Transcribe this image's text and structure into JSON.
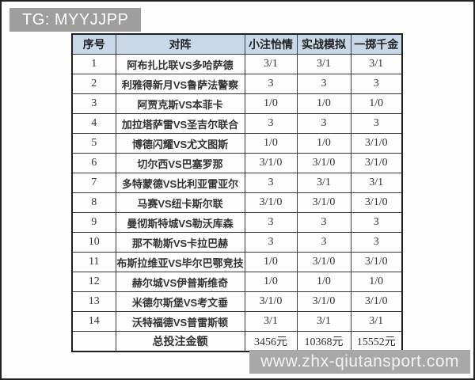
{
  "banner": {
    "text": "TG: MYYJJPP"
  },
  "watermark": {
    "text": "www.zhx-qiutansport.com"
  },
  "colors": {
    "banner_bg": "#9e9e9e",
    "header_bg": "#c8d8e8",
    "border": "#3a3a3a",
    "text": "#333333",
    "watermark_bg": "#a8a8a8",
    "watermark_text": "#f2f2f2"
  },
  "table": {
    "headers": {
      "no": "序号",
      "matchup": "对阵",
      "small_bet": "小注怡情",
      "simulation": "实战模拟",
      "big_bet": "一掷千金"
    },
    "rows": [
      {
        "no": "1",
        "matchup": "阿布扎比联VS多哈萨德",
        "small_bet": "3/1",
        "simulation": "3/1",
        "big_bet": "3/1"
      },
      {
        "no": "2",
        "matchup": "利雅得新月VS鲁萨法警察",
        "small_bet": "3",
        "simulation": "3",
        "big_bet": "3"
      },
      {
        "no": "3",
        "matchup": "阿贾克斯VS本菲卡",
        "small_bet": "1/0",
        "simulation": "1/0",
        "big_bet": "1/0"
      },
      {
        "no": "4",
        "matchup": "加拉塔萨雷VS圣吉尔联合",
        "small_bet": "3",
        "simulation": "3",
        "big_bet": "3"
      },
      {
        "no": "5",
        "matchup": "博德闪耀VS尤文图斯",
        "small_bet": "1/0",
        "simulation": "1/0",
        "big_bet": "3/1/0"
      },
      {
        "no": "6",
        "matchup": "切尔西VS巴塞罗那",
        "small_bet": "3/1/0",
        "simulation": "3/1/0",
        "big_bet": "3/1/0"
      },
      {
        "no": "7",
        "matchup": "多特蒙德VS比利亚雷亚尔",
        "small_bet": "3",
        "simulation": "3/1",
        "big_bet": "3/1"
      },
      {
        "no": "8",
        "matchup": "马赛VS纽卡斯尔联",
        "small_bet": "3/1/0",
        "simulation": "3/1/0",
        "big_bet": "3/1/0"
      },
      {
        "no": "9",
        "matchup": "曼彻斯特城VS勒沃库森",
        "small_bet": "3",
        "simulation": "3",
        "big_bet": "3"
      },
      {
        "no": "10",
        "matchup": "那不勒斯VS卡拉巴赫",
        "small_bet": "3",
        "simulation": "3",
        "big_bet": "3"
      },
      {
        "no": "11",
        "matchup": "布斯拉维亚VS毕尔巴鄂竞技",
        "small_bet": "1/0",
        "simulation": "3/1/0",
        "big_bet": "3/1/0"
      },
      {
        "no": "12",
        "matchup": "赫尔城VS伊普斯维奇",
        "small_bet": "1/0",
        "simulation": "1/0",
        "big_bet": "1/0"
      },
      {
        "no": "13",
        "matchup": "米德尔斯堡VS考文垂",
        "small_bet": "3/1/0",
        "simulation": "3/1/0",
        "big_bet": "3/1/0"
      },
      {
        "no": "14",
        "matchup": "沃特福德VS普雷斯顿",
        "small_bet": "3/1",
        "simulation": "3/1",
        "big_bet": "3/1"
      }
    ],
    "total": {
      "no": "",
      "label": "总投注金额",
      "small_bet": "3456元",
      "simulation": "10368元",
      "big_bet": "15552元"
    }
  }
}
